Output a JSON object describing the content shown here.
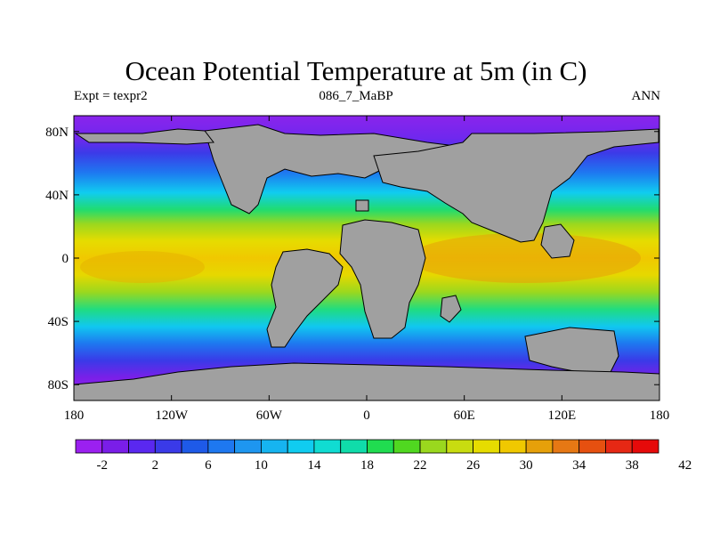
{
  "header": {
    "title": "Ocean Potential Temperature at 5m (in C)",
    "left": "Expt = texpr2",
    "center": "086_7_MaBP",
    "right": "ANN"
  },
  "map": {
    "lat_ticks": [
      "80N",
      "40N",
      "0",
      "40S",
      "80S"
    ],
    "lat_values": [
      80,
      40,
      0,
      -40,
      -80
    ],
    "lon_ticks": [
      "180",
      "120W",
      "60W",
      "0",
      "60E",
      "120E",
      "180"
    ],
    "lon_values": [
      -180,
      -120,
      -60,
      0,
      60,
      120,
      180
    ],
    "lat_range": [
      -90,
      90
    ],
    "lon_range": [
      -180,
      180
    ],
    "land_color": "#a0a0a0"
  },
  "colorbar": {
    "labels": [
      "-2",
      "2",
      "6",
      "10",
      "14",
      "18",
      "22",
      "26",
      "30",
      "34",
      "38",
      "42"
    ],
    "colors": [
      "#9b20f0",
      "#7a1ee8",
      "#5a28f0",
      "#3a3ae8",
      "#1e5ae8",
      "#1e78f0",
      "#1e96f0",
      "#16b4f0",
      "#10ccf0",
      "#10dcd2",
      "#10dcaa",
      "#20dc50",
      "#50d820",
      "#9ad81e",
      "#c8dc10",
      "#e6dc00",
      "#f0c800",
      "#e6a00a",
      "#e67814",
      "#e65010",
      "#e62814",
      "#e60a0a"
    ]
  }
}
